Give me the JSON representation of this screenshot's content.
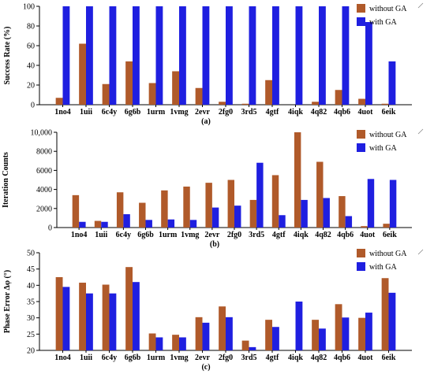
{
  "chart_data": [
    {
      "type": "bar",
      "panel_label": "(a)",
      "ylabel": "Success Rate (%)",
      "ylim": [
        0,
        100
      ],
      "yticks": [
        0,
        20,
        40,
        60,
        80,
        100
      ],
      "ytick_labels": [
        "0",
        "20",
        "40",
        "60",
        "80",
        "100"
      ],
      "categories": [
        "1no4",
        "1uii",
        "6c4y",
        "6g6b",
        "1urm",
        "1vmg",
        "2evr",
        "2fg0",
        "3rd5",
        "4gtf",
        "4iqk",
        "4q82",
        "4qb6",
        "4uot",
        "6eik"
      ],
      "series": [
        {
          "name": "without GA",
          "color": "#b05a2a",
          "values": [
            7,
            62,
            21,
            44,
            22,
            34,
            17,
            3,
            1,
            25,
            0,
            3,
            15,
            6,
            1
          ]
        },
        {
          "name": "with GA",
          "color": "#1f1fe0",
          "values": [
            100,
            100,
            100,
            100,
            100,
            100,
            100,
            100,
            100,
            100,
            100,
            100,
            100,
            84,
            44
          ]
        }
      ],
      "legend_position": "top-right"
    },
    {
      "type": "bar",
      "panel_label": "(b)",
      "ylabel": "Iteration Counts",
      "ylim": [
        0,
        10000
      ],
      "yticks": [
        0,
        2000,
        4000,
        6000,
        8000,
        10000
      ],
      "ytick_labels": [
        "0",
        "2000",
        "4000",
        "6000",
        "8000",
        "10,000"
      ],
      "categories": [
        "1no4",
        "1uii",
        "6c4y",
        "6g6b",
        "1urm",
        "1vmg",
        "2evr",
        "2fg0",
        "3rd5",
        "4gtf",
        "4iqk",
        "4q82",
        "4qb6",
        "4uot",
        "6eik"
      ],
      "series": [
        {
          "name": "without GA",
          "color": "#b05a2a",
          "values": [
            3400,
            700,
            3700,
            2600,
            3900,
            4300,
            4700,
            5000,
            2900,
            5500,
            10000,
            6900,
            3300,
            150,
            400
          ]
        },
        {
          "name": "with GA",
          "color": "#1f1fe0",
          "values": [
            600,
            600,
            1400,
            800,
            850,
            800,
            2100,
            2300,
            6800,
            1300,
            2900,
            3100,
            1200,
            5100,
            5000
          ]
        }
      ],
      "legend_position": "top-right"
    },
    {
      "type": "bar",
      "panel_label": "(c)",
      "ylabel": "Phase Error Δφ (°)",
      "ylim": [
        20,
        50
      ],
      "yticks": [
        20,
        25,
        30,
        35,
        40,
        45,
        50
      ],
      "ytick_labels": [
        "20",
        "25",
        "30",
        "35",
        "40",
        "45",
        "50"
      ],
      "categories": [
        "1no4",
        "1uii",
        "6c4y",
        "6g6b",
        "1urm",
        "1vmg",
        "2evr",
        "2fg0",
        "3rd5",
        "4gtf",
        "4iqk",
        "4q82",
        "4qb6",
        "4uot",
        "6eik"
      ],
      "series": [
        {
          "name": "without GA",
          "color": "#b05a2a",
          "values": [
            42.5,
            40.8,
            40.2,
            45.6,
            25.2,
            24.8,
            30.2,
            33.5,
            23.0,
            29.4,
            null,
            29.4,
            34.2,
            30.0,
            42.2
          ]
        },
        {
          "name": "with GA",
          "color": "#1f1fe0",
          "values": [
            39.5,
            37.5,
            37.5,
            41.0,
            24.0,
            24.0,
            28.5,
            30.2,
            21.0,
            27.2,
            35.0,
            26.7,
            30.1,
            31.6,
            37.7
          ]
        }
      ],
      "legend_position": "top-right"
    }
  ]
}
